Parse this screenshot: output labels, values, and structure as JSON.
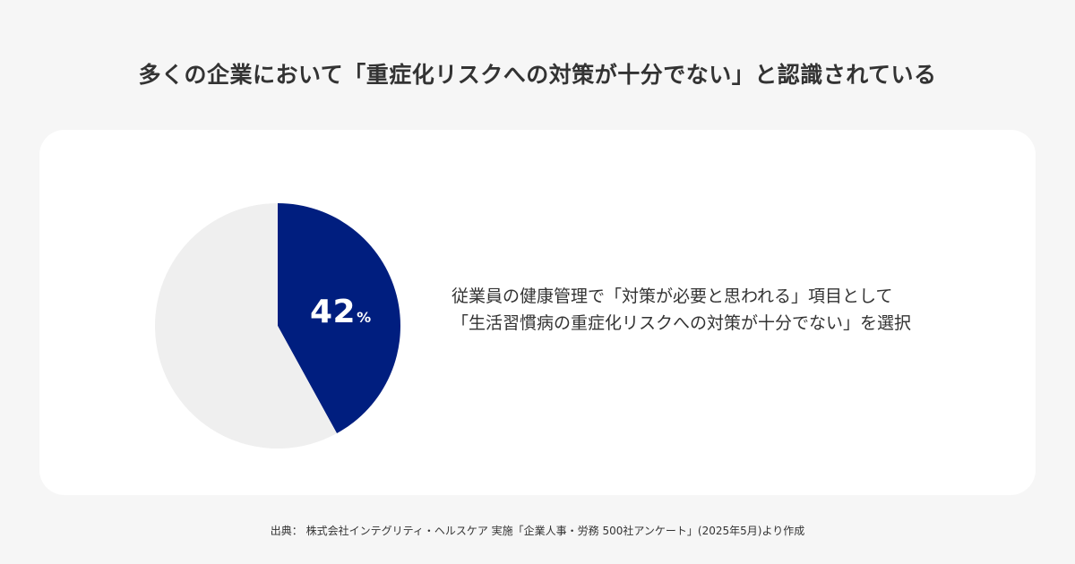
{
  "title": "多くの企業において「重症化リスクへの対策が十分でない」と認識されている",
  "chart_data": {
    "type": "pie",
    "slices": [
      {
        "label": "「生活習慣病の重症化リスクへの対策が十分でない」を選択",
        "value": 42,
        "color": "#001e7f"
      },
      {
        "label": "",
        "value": 58,
        "color": "#efefef"
      }
    ],
    "highlight_value_text": "42",
    "highlight_unit": "%"
  },
  "description": {
    "line1": "従業員の健康管理で「対策が必要と思われる」項目として",
    "line2": "「生活習慣病の重症化リスクへの対策が十分でない」を選択"
  },
  "source": "出典： 株式会社インテグリティ・ヘルスケア 実施「企業人事・労務 500社アンケート」(2025年5月)より作成",
  "colors": {
    "background": "#f6f6f6",
    "card": "#ffffff",
    "accent": "#001e7f",
    "remainder": "#efefef",
    "text": "#333333"
  }
}
